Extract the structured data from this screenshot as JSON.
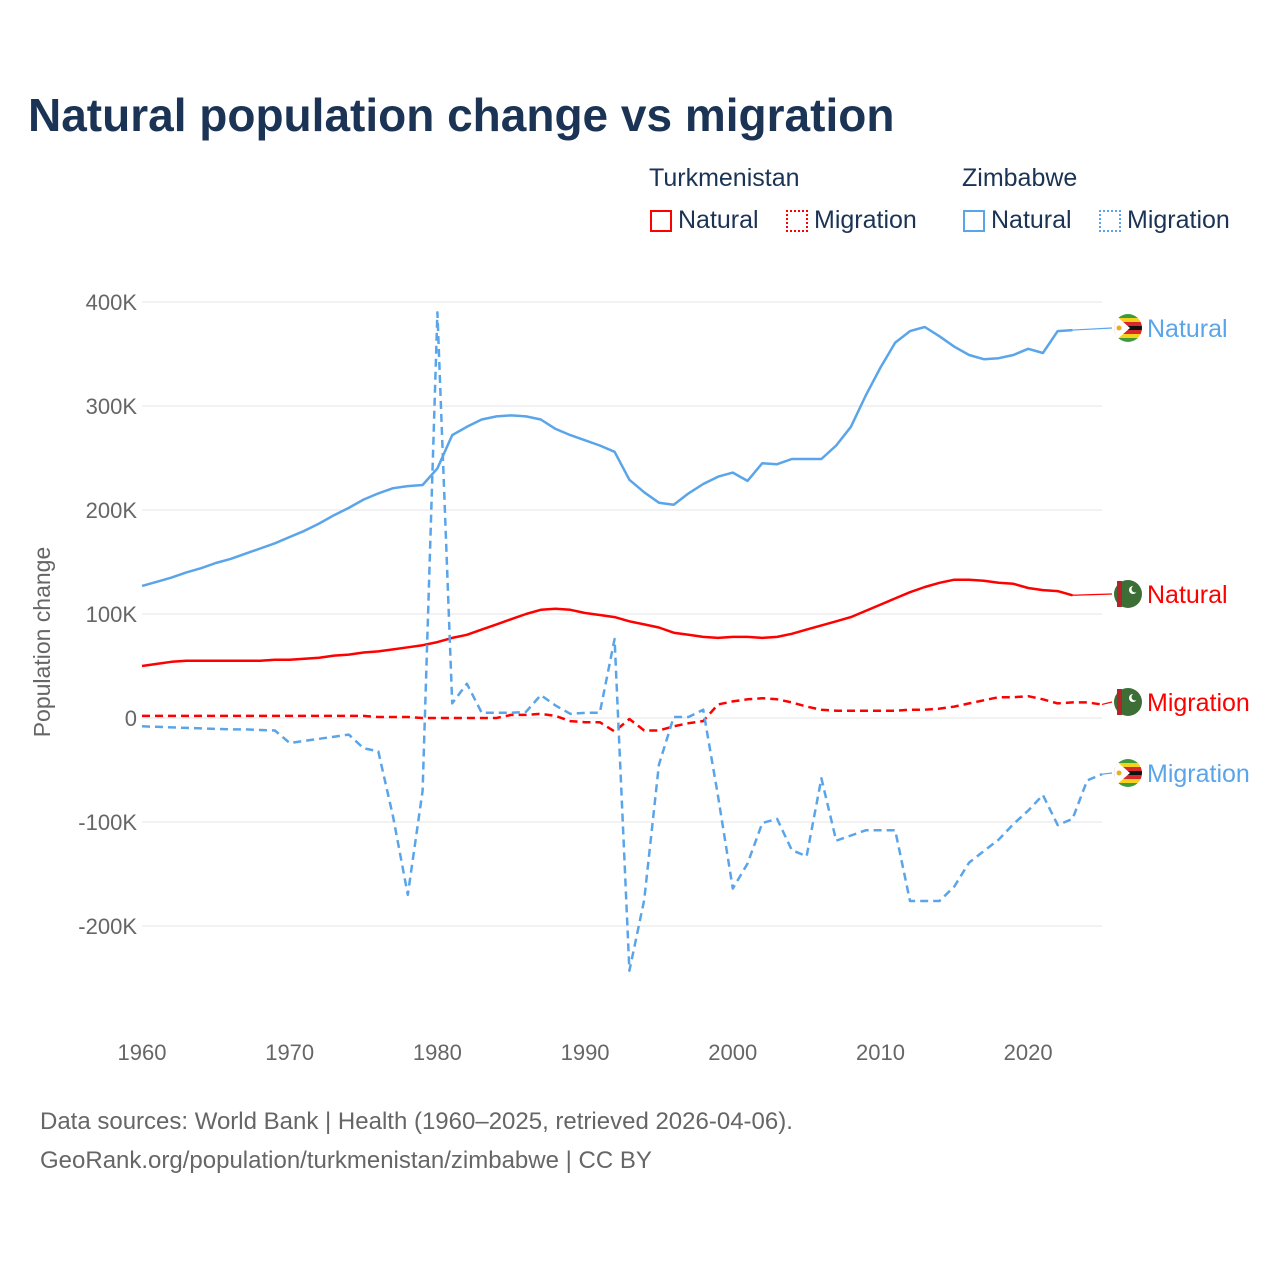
{
  "title": "Natural population change vs migration",
  "legend": {
    "groups": [
      {
        "name": "Turkmenistan",
        "items": [
          {
            "label": "Natural",
            "style": "solid"
          },
          {
            "label": "Migration",
            "style": "dotted"
          }
        ],
        "color": "#ff0000"
      },
      {
        "name": "Zimbabwe",
        "items": [
          {
            "label": "Natural",
            "style": "solid"
          },
          {
            "label": "Migration",
            "style": "dotted"
          }
        ],
        "color": "#5aa5ea"
      }
    ]
  },
  "footer": {
    "line1": "Data sources: World Bank | Health (1960–2025, retrieved 2026-04-06).",
    "line2": "GeoRank.org/population/turkmenistan/zimbabwe | CC BY"
  },
  "chart_data": {
    "type": "line",
    "title": "Natural population change vs migration",
    "ylabel": "Population change",
    "xlabel": "",
    "xlim": [
      1960,
      2025
    ],
    "ylim": [
      -250000,
      400000
    ],
    "xticks": [
      1960,
      1970,
      1980,
      1990,
      2000,
      2010,
      2020
    ],
    "xtick_labels": [
      "1960",
      "1970",
      "1980",
      "1990",
      "2000",
      "2010",
      "2020"
    ],
    "yticks": [
      400000,
      300000,
      200000,
      100000,
      0,
      -100000,
      -200000
    ],
    "ytick_labels": [
      "400K",
      "300K",
      "200K",
      "100K",
      "0",
      "-100K",
      "-200K"
    ],
    "grid": true,
    "legend_position": "top-right",
    "series": [
      {
        "name": "Zimbabwe Natural",
        "end_label": "Natural",
        "color": "#5aa5ea",
        "dash": false,
        "start_year": 1960,
        "flag": "zimbabwe-flag",
        "values_k": [
          127,
          131,
          135,
          140,
          144,
          149,
          153,
          158,
          163,
          168,
          174,
          180,
          187,
          195,
          202,
          210,
          216,
          221,
          223,
          224,
          240,
          272,
          280,
          287,
          290,
          291,
          290,
          287,
          278,
          272,
          267,
          262,
          256,
          229,
          217,
          207,
          205,
          216,
          225,
          232,
          236,
          228,
          245,
          244,
          249,
          249,
          249,
          262,
          280,
          310,
          337,
          361,
          372,
          376,
          367,
          357,
          349,
          345,
          346,
          349,
          355,
          351,
          372,
          373
        ]
      },
      {
        "name": "Turkmenistan Natural",
        "end_label": "Natural",
        "color": "#ff0000",
        "dash": false,
        "start_year": 1960,
        "flag": "turkmenistan-flag",
        "values_k": [
          50,
          52,
          54,
          55,
          55,
          55,
          55,
          55,
          55,
          56,
          56,
          57,
          58,
          60,
          61,
          63,
          64,
          66,
          68,
          70,
          73,
          77,
          80,
          85,
          90,
          95,
          100,
          104,
          105,
          104,
          101,
          99,
          97,
          93,
          90,
          87,
          82,
          80,
          78,
          77,
          78,
          78,
          77,
          78,
          81,
          85,
          89,
          93,
          97,
          103,
          109,
          115,
          121,
          126,
          130,
          133,
          133,
          132,
          130,
          129,
          125,
          123,
          122,
          118
        ]
      },
      {
        "name": "Turkmenistan Migration",
        "end_label": "Migration",
        "color": "#ff0000",
        "dash": true,
        "start_year": 1960,
        "flag": "turkmenistan-flag",
        "values_k": [
          2,
          2,
          2,
          2,
          2,
          2,
          2,
          2,
          2,
          2,
          2,
          2,
          2,
          2,
          2,
          2,
          1,
          1,
          1,
          0,
          0,
          0,
          0,
          0,
          0,
          3,
          3,
          4,
          2,
          -3,
          -4,
          -4,
          -13,
          -1,
          -12,
          -12,
          -8,
          -5,
          -3,
          13,
          16,
          18,
          19,
          18,
          15,
          11,
          8,
          7,
          7,
          7,
          7,
          7,
          8,
          8,
          9,
          11,
          14,
          17,
          20,
          20,
          21,
          18,
          14,
          15,
          15,
          13
        ]
      },
      {
        "name": "Zimbabwe Migration",
        "end_label": "Migration",
        "color": "#5aa5ea",
        "dash": true,
        "start_year": 1960,
        "flag": "zimbabwe-flag",
        "values_k": [
          -8,
          -8.5,
          -9,
          -9.5,
          -10,
          -10.5,
          -11,
          -11,
          -11.5,
          -12,
          -24,
          -22,
          -20,
          -18,
          -16,
          -29,
          -32,
          -95,
          -170,
          -70,
          390,
          14,
          33,
          5,
          5,
          5,
          6,
          22,
          12,
          4,
          5,
          5,
          76,
          -243,
          -175,
          -45,
          1,
          1,
          8,
          -75,
          -164,
          -140,
          -101,
          -97,
          -127,
          -133,
          -58,
          -118,
          -113,
          -108,
          -108,
          -108,
          -176,
          -176,
          -176,
          -162,
          -139,
          -128,
          -117,
          -102,
          -89,
          -74,
          -103,
          -97,
          -60,
          -54
        ]
      }
    ]
  }
}
